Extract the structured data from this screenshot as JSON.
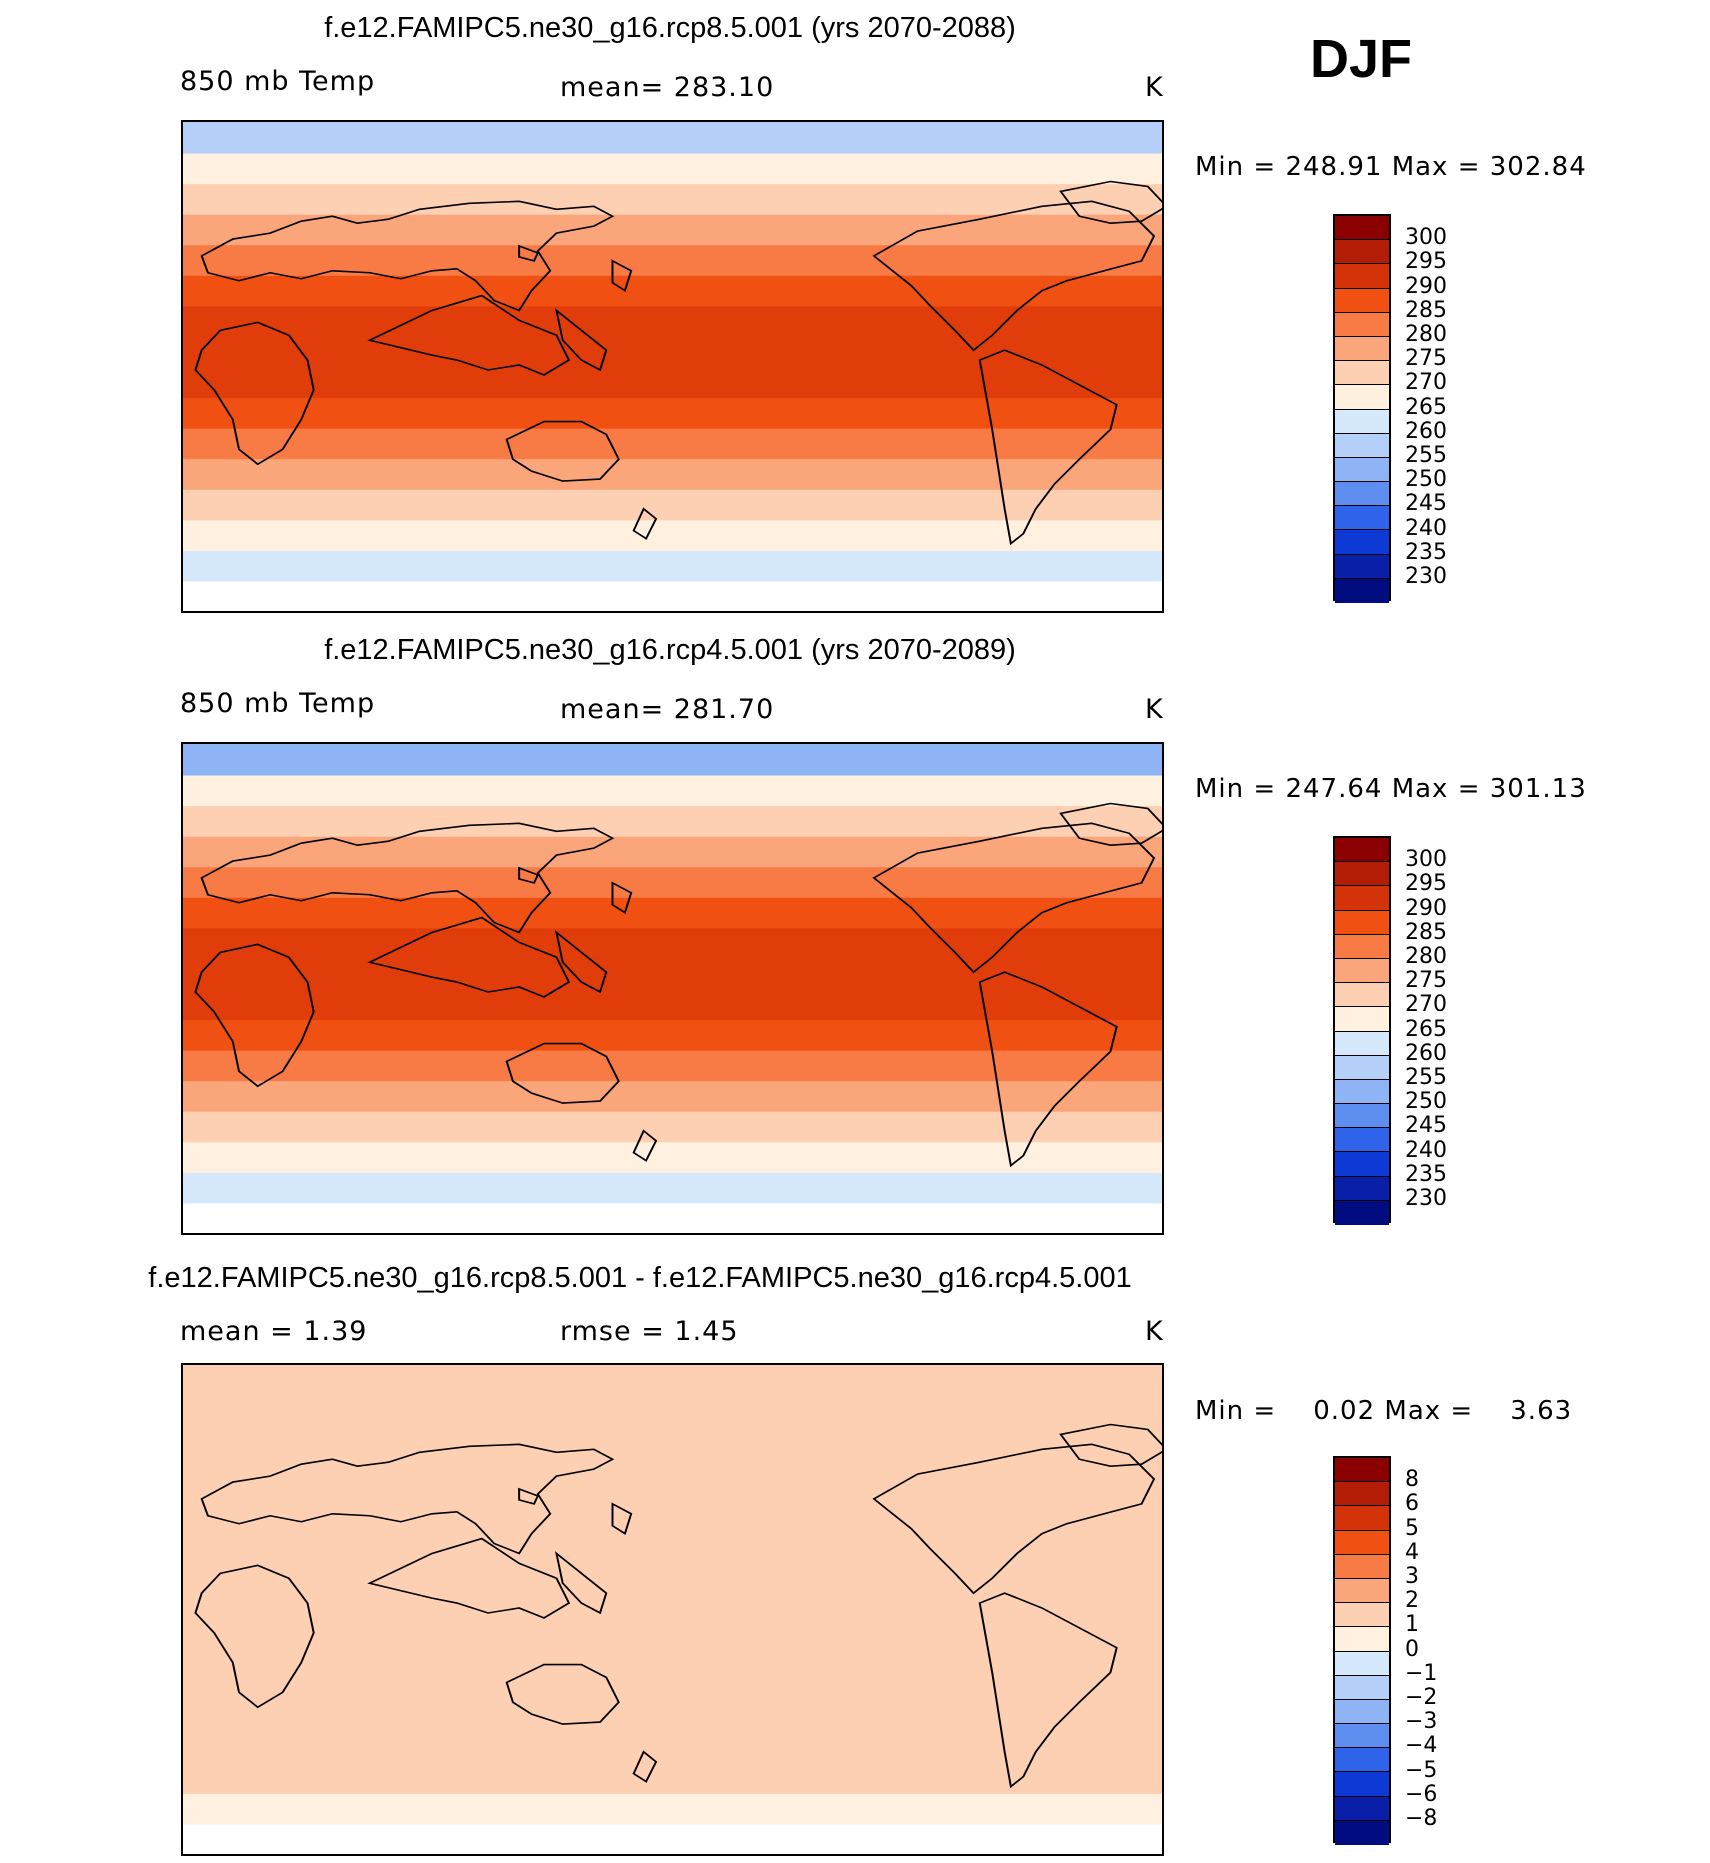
{
  "season_label": "DJF",
  "panels": [
    {
      "title": "f.e12.FAMIPC5.ne30_g16.rcp8.5.001 (yrs 2070-2088)",
      "left_label": "850 mb Temp",
      "center_label": "mean= 283.10",
      "units": "K",
      "minmax": "Min = 248.91 Max = 302.84",
      "colorbar_levels": [
        "300",
        "295",
        "290",
        "285",
        "280",
        "275",
        "270",
        "265",
        "260",
        "255",
        "250",
        "245",
        "240",
        "235",
        "230"
      ],
      "colorbar_colors": [
        "#8b0000",
        "#b31d05",
        "#d4330a",
        "#f05012",
        "#f87a45",
        "#fba57a",
        "#fdd0b3",
        "#fff0e0",
        "#d6e8fb",
        "#b4d0f8",
        "#8fb4f5",
        "#5e8ef0",
        "#2f64ea",
        "#0d3ad4",
        "#0a1fa8",
        "#000c80"
      ],
      "zonal_bands": [
        "#ffffff",
        "#d6e8fb",
        "#fff0e0",
        "#fdd0b3",
        "#fba57a",
        "#f87a45",
        "#f05012",
        "#e03d0a",
        "#e03d0a",
        "#e03d0a",
        "#f05012",
        "#f87a45",
        "#fba57a",
        "#fdd0b3",
        "#fff0e0",
        "#b4d0f8"
      ]
    },
    {
      "title": "f.e12.FAMIPC5.ne30_g16.rcp4.5.001 (yrs 2070-2089)",
      "left_label": "850 mb Temp",
      "center_label": "mean= 281.70",
      "units": "K",
      "minmax": "Min = 247.64 Max = 301.13",
      "colorbar_levels": [
        "300",
        "295",
        "290",
        "285",
        "280",
        "275",
        "270",
        "265",
        "260",
        "255",
        "250",
        "245",
        "240",
        "235",
        "230"
      ],
      "colorbar_colors": [
        "#8b0000",
        "#b31d05",
        "#d4330a",
        "#f05012",
        "#f87a45",
        "#fba57a",
        "#fdd0b3",
        "#fff0e0",
        "#d6e8fb",
        "#b4d0f8",
        "#8fb4f5",
        "#5e8ef0",
        "#2f64ea",
        "#0d3ad4",
        "#0a1fa8",
        "#000c80"
      ],
      "zonal_bands": [
        "#ffffff",
        "#d6e8fb",
        "#fff0e0",
        "#fdd0b3",
        "#fba57a",
        "#f87a45",
        "#f05012",
        "#e03d0a",
        "#e03d0a",
        "#e03d0a",
        "#f05012",
        "#f87a45",
        "#fba57a",
        "#fdd0b3",
        "#fff0e0",
        "#8fb4f5"
      ]
    },
    {
      "title": "f.e12.FAMIPC5.ne30_g16.rcp8.5.001 - f.e12.FAMIPC5.ne30_g16.rcp4.5.001",
      "left_label": "mean =    1.39",
      "center_label": "rmse =    1.45",
      "units": "K",
      "minmax": "Min =    0.02 Max =    3.63",
      "colorbar_levels": [
        "8",
        "6",
        "5",
        "4",
        "3",
        "2",
        "1",
        "0",
        "−1",
        "−2",
        "−3",
        "−4",
        "−5",
        "−6",
        "−8"
      ],
      "colorbar_colors": [
        "#8b0000",
        "#b31d05",
        "#d4330a",
        "#f05012",
        "#f87a45",
        "#fba57a",
        "#fdd0b3",
        "#fff0e0",
        "#d6e8fb",
        "#b4d0f8",
        "#8fb4f5",
        "#5e8ef0",
        "#2f64ea",
        "#0d3ad4",
        "#0a1fa8",
        "#000c80"
      ],
      "zonal_bands": [
        "#ffffff",
        "#fff0e0",
        "#fdd0b3",
        "#fdd0b3",
        "#fdd0b3",
        "#fdd0b3",
        "#fdd0b3",
        "#fdd0b3",
        "#fdd0b3",
        "#fdd0b3",
        "#fdd0b3",
        "#fdd0b3",
        "#fdd0b3",
        "#fdd0b3",
        "#fdd0b3",
        "#fdd0b3"
      ]
    }
  ]
}
